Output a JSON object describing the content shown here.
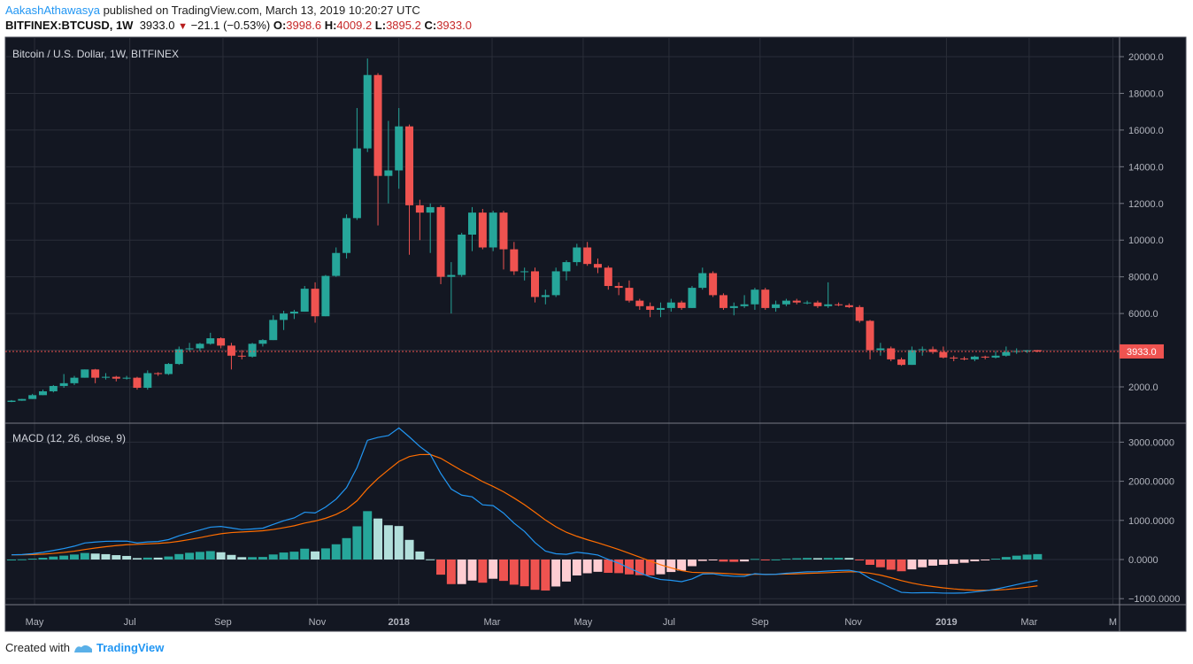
{
  "header": {
    "author": "AakashAthawasya",
    "published": "published on TradingView.com, March 13, 2019 10:20:27 UTC",
    "symbol": "BITFINEX:BTCUSD, 1W",
    "last": "3933.0",
    "change": "−21.1 (−0.53%)",
    "o_label": "O:",
    "o": "3998.6",
    "h_label": "H:",
    "h": "4009.2",
    "l_label": "L:",
    "l": "3895.2",
    "c_label": "C:",
    "c": "3933.0"
  },
  "footer": {
    "created_with": "Created with",
    "brand": "TradingView"
  },
  "colors": {
    "bg": "#131722",
    "up": "#26a69a",
    "down": "#ef5350",
    "macd": "#2196f3",
    "signal": "#ff6d00",
    "hist_up_grow": "#26a69a",
    "hist_up_fall": "#b2dfdb",
    "hist_dn_grow": "#ef5350",
    "hist_dn_fall": "#ffcdd2",
    "grid": "#2a2e39",
    "text": "#b2b5be"
  },
  "chart_data": [
    {
      "type": "candlestick",
      "title": "Bitcoin / U.S. Dollar, 1W, BITFINEX",
      "interval": "1W",
      "first_week": "2017-04-17",
      "ylim": [
        700,
        21000
      ],
      "yticks": [
        "20000.0",
        "18000.0",
        "16000.0",
        "14000.0",
        "12000.0",
        "10000.0",
        "8000.0",
        "6000.0",
        "2000.0"
      ],
      "ytick_values": [
        20000,
        18000,
        16000,
        14000,
        12000,
        10000,
        8000,
        6000,
        2000
      ],
      "last_price_label": "3933.0",
      "last_price": 3933,
      "xticks": [
        {
          "label": "May",
          "bold": false,
          "week": 2.2
        },
        {
          "label": "Jul",
          "bold": false,
          "week": 11.3
        },
        {
          "label": "Sep",
          "bold": false,
          "week": 20.2
        },
        {
          "label": "Nov",
          "bold": false,
          "week": 29.2
        },
        {
          "label": "2018",
          "bold": true,
          "week": 37.0
        },
        {
          "label": "Mar",
          "bold": false,
          "week": 45.9
        },
        {
          "label": "May",
          "bold": false,
          "week": 54.6
        },
        {
          "label": "Jul",
          "bold": false,
          "week": 62.8
        },
        {
          "label": "Sep",
          "bold": false,
          "week": 71.5
        },
        {
          "label": "Nov",
          "bold": false,
          "week": 80.4
        },
        {
          "label": "2019",
          "bold": true,
          "week": 89.3
        },
        {
          "label": "Mar",
          "bold": false,
          "week": 97.2
        },
        {
          "label": "M",
          "bold": false,
          "week": 105.2
        }
      ],
      "ohlc": [
        [
          1180,
          1280,
          1170,
          1250
        ],
        [
          1250,
          1350,
          1240,
          1340
        ],
        [
          1340,
          1620,
          1340,
          1550
        ],
        [
          1550,
          1850,
          1550,
          1760
        ],
        [
          1760,
          2100,
          1700,
          2050
        ],
        [
          2050,
          2700,
          1950,
          2200
        ],
        [
          2200,
          2600,
          2100,
          2500
        ],
        [
          2500,
          2950,
          2500,
          2950
        ],
        [
          2950,
          2980,
          2200,
          2500
        ],
        [
          2500,
          2750,
          2400,
          2550
        ],
        [
          2550,
          2600,
          2300,
          2450
        ],
        [
          2450,
          2600,
          2400,
          2500
        ],
        [
          2500,
          2550,
          1850,
          1950
        ],
        [
          1950,
          2900,
          1850,
          2750
        ],
        [
          2750,
          2800,
          2600,
          2700
        ],
        [
          2700,
          3300,
          2650,
          3250
        ],
        [
          3250,
          4200,
          3200,
          4050
        ],
        [
          4050,
          4400,
          3950,
          4100
        ],
        [
          4100,
          4400,
          3950,
          4350
        ],
        [
          4350,
          4950,
          4300,
          4650
        ],
        [
          4650,
          4700,
          4100,
          4250
        ],
        [
          4250,
          4400,
          2950,
          3700
        ],
        [
          3700,
          4000,
          3500,
          3650
        ],
        [
          3650,
          4400,
          3600,
          4350
        ],
        [
          4350,
          4600,
          4200,
          4550
        ],
        [
          4550,
          5900,
          4550,
          5650
        ],
        [
          5650,
          6150,
          5100,
          6000
        ],
        [
          6000,
          6200,
          5700,
          6100
        ],
        [
          6100,
          7500,
          6100,
          7350
        ],
        [
          7350,
          7700,
          5500,
          5850
        ],
        [
          5850,
          8100,
          5850,
          8050
        ],
        [
          8050,
          9600,
          8000,
          9300
        ],
        [
          9300,
          11400,
          9000,
          11200
        ],
        [
          11200,
          17200,
          11100,
          15000
        ],
        [
          15000,
          19900,
          14800,
          19000
        ],
        [
          19000,
          19100,
          10800,
          13500
        ],
        [
          13500,
          16500,
          12000,
          13800
        ],
        [
          13800,
          17200,
          12800,
          16200
        ],
        [
          16200,
          16300,
          9200,
          11900
        ],
        [
          11900,
          12200,
          10000,
          11500
        ],
        [
          11500,
          12000,
          9300,
          11800
        ],
        [
          11800,
          11900,
          7600,
          8000
        ],
        [
          8000,
          8800,
          6000,
          8100
        ],
        [
          8100,
          10400,
          8000,
          10300
        ],
        [
          10300,
          11800,
          9400,
          11500
        ],
        [
          11500,
          11700,
          9500,
          9600
        ],
        [
          9600,
          11600,
          9400,
          11500
        ],
        [
          11500,
          11600,
          8400,
          9500
        ],
        [
          9500,
          9900,
          8100,
          8300
        ],
        [
          8300,
          8500,
          7800,
          8300
        ],
        [
          8300,
          8500,
          6600,
          6900
        ],
        [
          6900,
          7300,
          6500,
          7000
        ],
        [
          7000,
          8500,
          6900,
          8300
        ],
        [
          8300,
          8900,
          7800,
          8800
        ],
        [
          8800,
          9800,
          8600,
          9600
        ],
        [
          9600,
          9900,
          8600,
          8700
        ],
        [
          8700,
          9000,
          8200,
          8500
        ],
        [
          8500,
          8600,
          7300,
          7500
        ],
        [
          7500,
          7700,
          7000,
          7400
        ],
        [
          7400,
          7800,
          6600,
          6700
        ],
        [
          6700,
          6800,
          6200,
          6400
        ],
        [
          6400,
          6600,
          5800,
          6200
        ],
        [
          6200,
          6600,
          5800,
          6300
        ],
        [
          6300,
          6800,
          6100,
          6600
        ],
        [
          6600,
          6700,
          6200,
          6300
        ],
        [
          6300,
          7500,
          6300,
          7400
        ],
        [
          7400,
          8500,
          7300,
          8200
        ],
        [
          8200,
          8300,
          6900,
          7000
        ],
        [
          7000,
          7100,
          6200,
          6300
        ],
        [
          6300,
          6600,
          5900,
          6400
        ],
        [
          6400,
          7000,
          6300,
          6500
        ],
        [
          6500,
          7400,
          6200,
          7300
        ],
        [
          7300,
          7400,
          6200,
          6300
        ],
        [
          6300,
          6700,
          6100,
          6500
        ],
        [
          6500,
          6800,
          6400,
          6700
        ],
        [
          6700,
          6800,
          6500,
          6600
        ],
        [
          6600,
          6700,
          6500,
          6600
        ],
        [
          6600,
          6700,
          6300,
          6400
        ],
        [
          6400,
          7700,
          6300,
          6500
        ],
        [
          6500,
          6600,
          6400,
          6450
        ],
        [
          6450,
          6550,
          6300,
          6350
        ],
        [
          6350,
          6450,
          5500,
          5600
        ],
        [
          5600,
          5650,
          3500,
          4000
        ],
        [
          4000,
          4400,
          3700,
          4100
        ],
        [
          4100,
          4200,
          3400,
          3500
        ],
        [
          3500,
          3600,
          3150,
          3200
        ],
        [
          3200,
          4200,
          3200,
          4000
        ],
        [
          4000,
          4200,
          3700,
          4050
        ],
        [
          4050,
          4200,
          3800,
          3900
        ],
        [
          3900,
          4200,
          3550,
          3600
        ],
        [
          3600,
          3700,
          3400,
          3550
        ],
        [
          3550,
          3650,
          3450,
          3500
        ],
        [
          3500,
          3700,
          3400,
          3650
        ],
        [
          3650,
          3700,
          3500,
          3600
        ],
        [
          3600,
          3950,
          3550,
          3700
        ],
        [
          3700,
          4200,
          3650,
          3900
        ],
        [
          3900,
          4100,
          3800,
          3950
        ],
        [
          3950,
          4000,
          3850,
          3990
        ],
        [
          3998.6,
          4009.2,
          3895.2,
          3933.0
        ]
      ]
    },
    {
      "type": "line+bar",
      "title": "MACD (12, 26, close, 9)",
      "params": {
        "fast": 12,
        "slow": 26,
        "signal": 9,
        "source": "close"
      },
      "ylim": [
        -1150,
        3400
      ],
      "yticks": [
        "3000.0000",
        "2000.0000",
        "1000.0000",
        "0.0000",
        "−1000.0000"
      ],
      "ytick_values": [
        3000,
        2000,
        1000,
        0,
        -1000
      ],
      "series": [
        {
          "name": "MACD",
          "color": "#2196f3"
        },
        {
          "name": "Signal",
          "color": "#ff6d00"
        },
        {
          "name": "Histogram"
        }
      ]
    }
  ]
}
